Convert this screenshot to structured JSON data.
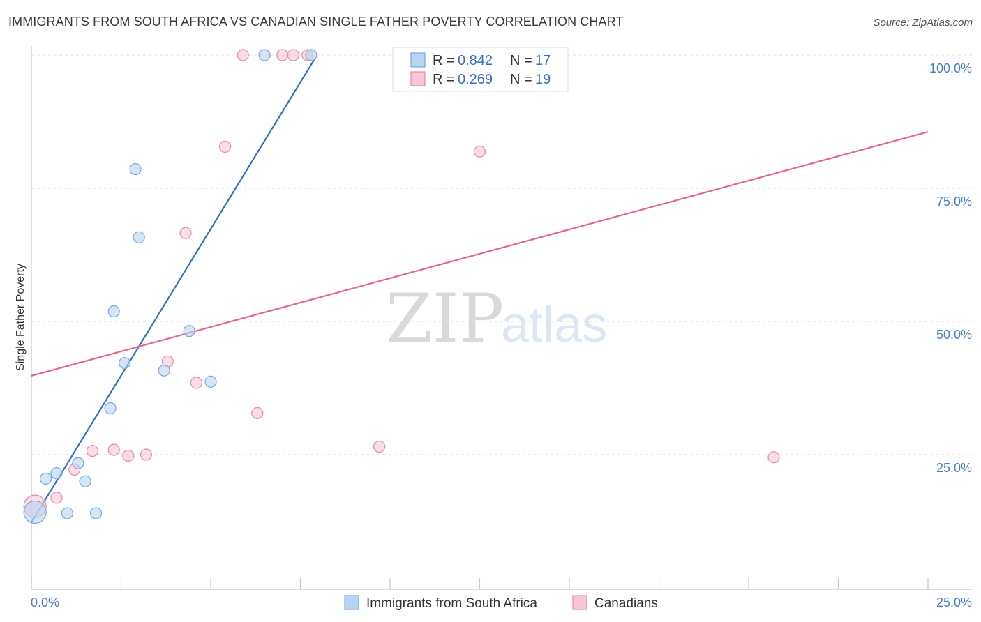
{
  "title": "IMMIGRANTS FROM SOUTH AFRICA VS CANADIAN SINGLE FATHER POVERTY CORRELATION CHART",
  "source": "Source: ZipAtlas.com",
  "watermark": {
    "zip": "ZIP",
    "atlas": "atlas"
  },
  "colors": {
    "blue_fill": "#b9d3f4",
    "blue_stroke": "#7aa6dd",
    "blue_line": "#2f6fcc",
    "pink_fill": "#f8c7d6",
    "pink_stroke": "#e88aa8",
    "pink_line": "#e0678f",
    "tick_text": "#4a7cc9",
    "grid": "#dddddd"
  },
  "legend": {
    "series": [
      {
        "r_label": "R =",
        "r_value": "0.842",
        "n_label": "N =",
        "n_value": "17"
      },
      {
        "r_label": "R =",
        "r_value": "0.269",
        "n_label": "N =",
        "n_value": "19"
      }
    ]
  },
  "bottom_legend": [
    "Immigrants from South Africa",
    "Canadians"
  ],
  "chart_data": {
    "type": "scatter",
    "title": "IMMIGRANTS FROM SOUTH AFRICA VS CANADIAN SINGLE FATHER POVERTY CORRELATION CHART",
    "xlabel": "",
    "ylabel": "Single Father Poverty",
    "xlim": [
      0,
      25
    ],
    "ylim": [
      0,
      100
    ],
    "x_tick_labels": [
      "0.0%",
      "25.0%"
    ],
    "y_ticks": [
      25,
      50,
      75,
      100
    ],
    "y_tick_labels": [
      "25.0%",
      "50.0%",
      "75.0%",
      "100.0%"
    ],
    "grid": true,
    "series": [
      {
        "name": "Immigrants from South Africa",
        "color": "blue",
        "r": 0.842,
        "n": 17,
        "points": [
          {
            "x": 0.1,
            "y": 14.2,
            "size": "large"
          },
          {
            "x": 0.4,
            "y": 20.5
          },
          {
            "x": 0.7,
            "y": 21.5
          },
          {
            "x": 1.0,
            "y": 14.0
          },
          {
            "x": 1.3,
            "y": 23.4
          },
          {
            "x": 1.5,
            "y": 20.0
          },
          {
            "x": 1.8,
            "y": 14.0
          },
          {
            "x": 2.2,
            "y": 33.7
          },
          {
            "x": 2.3,
            "y": 51.9
          },
          {
            "x": 2.6,
            "y": 42.2
          },
          {
            "x": 2.9,
            "y": 78.6
          },
          {
            "x": 3.0,
            "y": 65.8
          },
          {
            "x": 3.7,
            "y": 40.8
          },
          {
            "x": 4.4,
            "y": 48.2
          },
          {
            "x": 5.0,
            "y": 38.7
          },
          {
            "x": 6.5,
            "y": 100.0
          },
          {
            "x": 7.8,
            "y": 100.0
          }
        ],
        "trend": {
          "x1": 0.0,
          "y1": 12.3,
          "x2": 7.9,
          "y2": 99.3
        }
      },
      {
        "name": "Canadians",
        "color": "pink",
        "r": 0.269,
        "n": 19,
        "points": [
          {
            "x": 0.1,
            "y": 15.3,
            "size": "large"
          },
          {
            "x": 0.7,
            "y": 16.9
          },
          {
            "x": 1.2,
            "y": 22.2
          },
          {
            "x": 1.7,
            "y": 25.7
          },
          {
            "x": 2.3,
            "y": 25.9
          },
          {
            "x": 2.7,
            "y": 24.8
          },
          {
            "x": 3.2,
            "y": 25.0
          },
          {
            "x": 3.8,
            "y": 42.5
          },
          {
            "x": 4.3,
            "y": 66.6
          },
          {
            "x": 4.6,
            "y": 38.5
          },
          {
            "x": 5.4,
            "y": 82.8
          },
          {
            "x": 5.9,
            "y": 100.0
          },
          {
            "x": 6.3,
            "y": 32.8
          },
          {
            "x": 7.0,
            "y": 100.0
          },
          {
            "x": 7.3,
            "y": 100.0
          },
          {
            "x": 7.7,
            "y": 100.0
          },
          {
            "x": 9.7,
            "y": 26.5
          },
          {
            "x": 12.5,
            "y": 81.9
          },
          {
            "x": 20.7,
            "y": 24.5
          }
        ],
        "trend": {
          "x1": 0.0,
          "y1": 39.8,
          "x2": 25.0,
          "y2": 85.6
        }
      }
    ]
  }
}
